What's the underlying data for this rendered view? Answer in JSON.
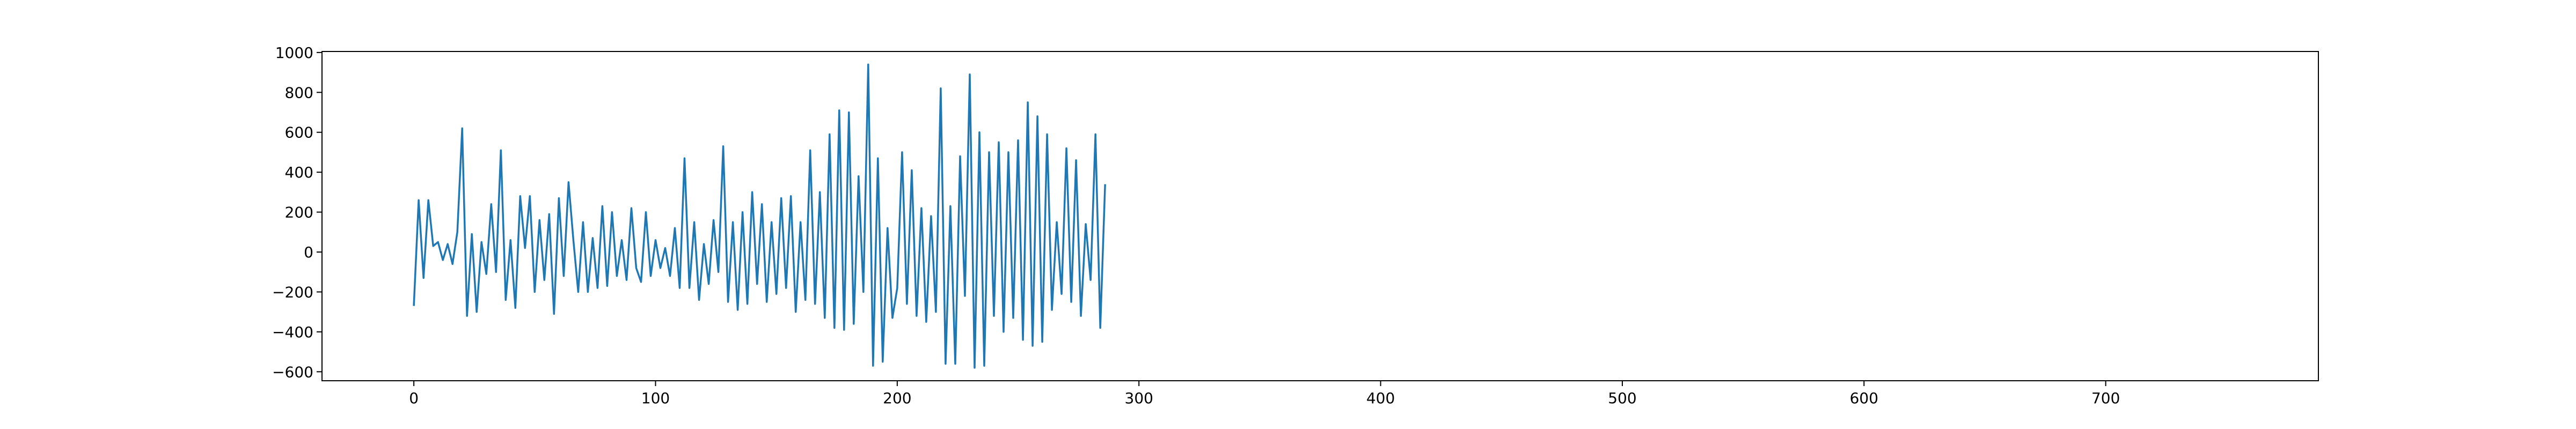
{
  "chart_data": {
    "type": "line",
    "title": "",
    "xlabel": "",
    "ylabel": "",
    "xlim": [
      -38,
      788
    ],
    "ylim": [
      -645,
      1005
    ],
    "x_ticks": [
      0,
      100,
      200,
      300,
      400,
      500,
      600,
      700
    ],
    "y_ticks": [
      -600,
      -400,
      -200,
      0,
      200,
      400,
      600,
      800,
      1000
    ],
    "grid": false,
    "legend": "none",
    "series_color": "#1f77b4",
    "x_start": 0,
    "x_step": 2,
    "y": [
      -270,
      260,
      -130,
      260,
      30,
      50,
      -40,
      40,
      -60,
      100,
      620,
      -320,
      90,
      -300,
      50,
      -110,
      240,
      -100,
      510,
      -240,
      60,
      -280,
      280,
      20,
      280,
      -200,
      160,
      -140,
      190,
      -310,
      270,
      -120,
      350,
      60,
      -200,
      150,
      -200,
      70,
      -180,
      230,
      -170,
      200,
      -120,
      60,
      -140,
      220,
      -80,
      -150,
      200,
      -120,
      60,
      -80,
      20,
      -120,
      120,
      -180,
      470,
      -180,
      150,
      -240,
      40,
      -160,
      160,
      -100,
      530,
      -250,
      150,
      -290,
      200,
      -260,
      300,
      -160,
      240,
      -250,
      150,
      -210,
      270,
      -180,
      280,
      -300,
      150,
      -240,
      510,
      -260,
      300,
      -330,
      590,
      -380,
      710,
      -390,
      700,
      -360,
      380,
      -200,
      940,
      -570,
      470,
      -550,
      120,
      -330,
      -180,
      500,
      -260,
      410,
      -320,
      220,
      -350,
      180,
      -300,
      820,
      -560,
      230,
      -560,
      480,
      -220,
      890,
      -580,
      600,
      -570,
      500,
      -320,
      550,
      -400,
      500,
      -330,
      560,
      -440,
      750,
      -470,
      680,
      -450,
      590,
      -290,
      150,
      -210,
      520,
      -250,
      460,
      -320,
      140,
      -140,
      590,
      -380,
      340
    ]
  }
}
